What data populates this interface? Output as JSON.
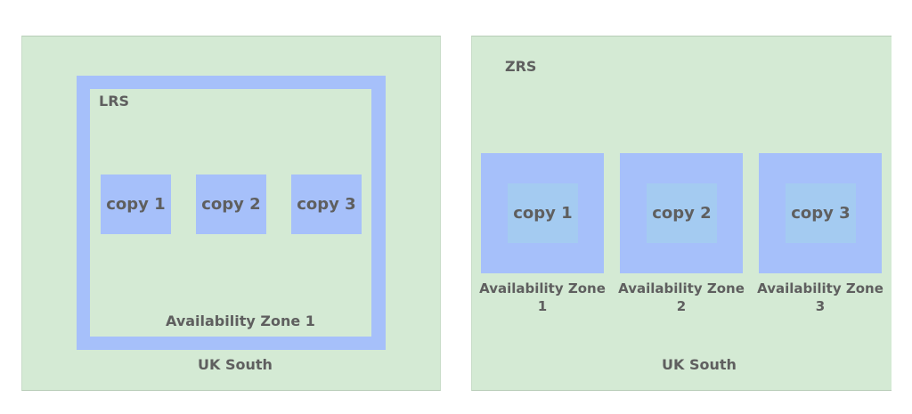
{
  "lrs": {
    "title": "LRS",
    "region_label": "UK South",
    "zone_label": "Availability Zone 1",
    "copies": [
      "copy 1",
      "copy 2",
      "copy 3"
    ]
  },
  "zrs": {
    "title": "ZRS",
    "region_label": "UK South",
    "copies": [
      "copy 1",
      "copy 2",
      "copy 3"
    ],
    "zones": [
      {
        "label": "Availability Zone 1"
      },
      {
        "label": "Availability Zone 2"
      },
      {
        "label": "Availability Zone 3"
      }
    ]
  },
  "colors": {
    "region_fill": "#d4ead4",
    "zone_fill": "#a6c0fa",
    "zrs_copy_fill": "#a4cbf1",
    "text": "#5f5f5f"
  }
}
